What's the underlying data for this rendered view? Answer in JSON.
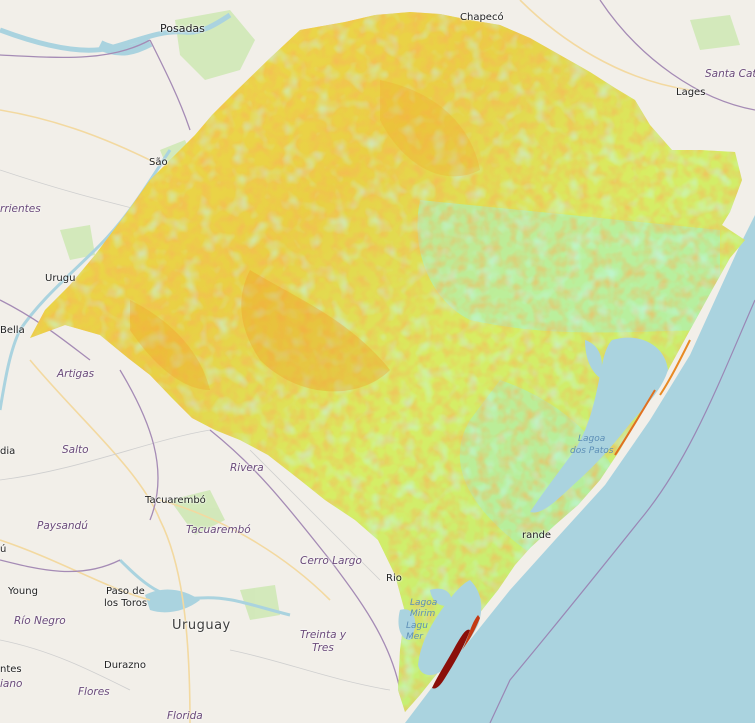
{
  "map": {
    "type": "raster overlay on basemap",
    "colors": {
      "land": "#f2efe9",
      "water": "#aad3df",
      "green": "#cfe8b6",
      "road": "#f6e8b8",
      "border": "#a58bb5"
    },
    "labels": {
      "cities": [
        {
          "key": "posadas",
          "text": "Posadas"
        },
        {
          "key": "chapeco",
          "text": "Chapecó"
        },
        {
          "key": "lages",
          "text": "Lages"
        },
        {
          "key": "sao",
          "text": "São"
        },
        {
          "key": "urugu",
          "text": "Urugu"
        },
        {
          "key": "bella",
          "text": "Bella"
        },
        {
          "key": "tacuarembo_city",
          "text": "Tacuarembó"
        },
        {
          "key": "young",
          "text": "Young"
        },
        {
          "key": "paso_de",
          "text": "Paso de"
        },
        {
          "key": "los_toros",
          "text": "los Toros"
        },
        {
          "key": "durazno",
          "text": "Durazno"
        },
        {
          "key": "rio",
          "text": "Rio"
        },
        {
          "key": "rande",
          "text": "rande"
        },
        {
          "key": "dia",
          "text": "dia"
        },
        {
          "key": "u_left",
          "text": "ú"
        },
        {
          "key": "ntes",
          "text": "ntes"
        }
      ],
      "departments": [
        {
          "key": "santa_cat",
          "text": "Santa Cat"
        },
        {
          "key": "rrientes",
          "text": "rrientes"
        },
        {
          "key": "artigas",
          "text": "Artigas"
        },
        {
          "key": "salto",
          "text": "Salto"
        },
        {
          "key": "rivera",
          "text": "Rivera"
        },
        {
          "key": "paysandu",
          "text": "Paysandú"
        },
        {
          "key": "tacuarembo_dept",
          "text": "Tacuarembó"
        },
        {
          "key": "cerro_largo",
          "text": "Cerro Largo"
        },
        {
          "key": "rio_negro",
          "text": "Río Negro"
        },
        {
          "key": "treinta_y",
          "text": "Treinta y"
        },
        {
          "key": "tres",
          "text": "Tres"
        },
        {
          "key": "flores",
          "text": "Flores"
        },
        {
          "key": "florida",
          "text": "Florida"
        },
        {
          "key": "iano",
          "text": "iano"
        }
      ],
      "countries": [
        {
          "key": "uruguay",
          "text": "Uruguay"
        }
      ],
      "water": [
        {
          "key": "lagoa_dos_patos_1",
          "text": "Lagoa"
        },
        {
          "key": "lagoa_dos_patos_2",
          "text": "dos Patos"
        },
        {
          "key": "lagoa_mirim_1",
          "text": "Lagoa"
        },
        {
          "key": "lagoa_mirim_2",
          "text": "Mirim"
        },
        {
          "key": "lagoa_mirim_3",
          "text": "Lagu"
        },
        {
          "key": "lagoa_mirim_4",
          "text": "Mer"
        }
      ]
    }
  }
}
